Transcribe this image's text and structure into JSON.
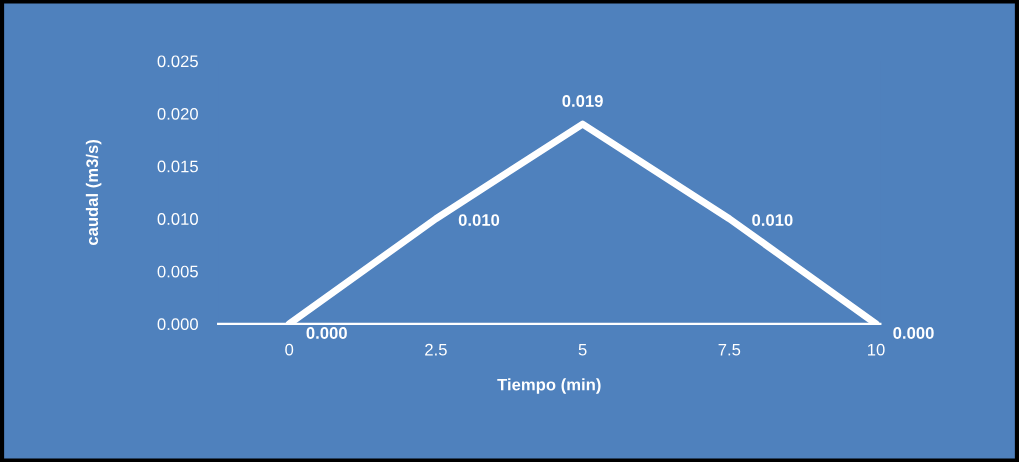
{
  "chart_data": {
    "type": "line",
    "xlabel": "Tiempo (min)",
    "ylabel": "caudal (m3/s)",
    "categories": [
      "0",
      "2.5",
      "5",
      "7.5",
      "10"
    ],
    "series": [
      {
        "color": "#ffffff",
        "values": [
          0.0,
          0.01,
          0.019,
          0.01,
          0.0
        ],
        "value_labels": [
          "0.000",
          "0.010",
          "0.019",
          "0.010",
          "0.000"
        ]
      }
    ],
    "ylim": [
      0,
      0.025
    ],
    "yticks": [
      {
        "value": 0,
        "label": "0.000"
      },
      {
        "value": 0.005,
        "label": "0.005"
      },
      {
        "value": 0.01,
        "label": "0.010"
      },
      {
        "value": 0.015,
        "label": "0.015"
      },
      {
        "value": 0.02,
        "label": "0.020"
      },
      {
        "value": 0.025,
        "label": "0.025"
      }
    ],
    "grid": false,
    "marker": "none",
    "line_style": "solid"
  }
}
